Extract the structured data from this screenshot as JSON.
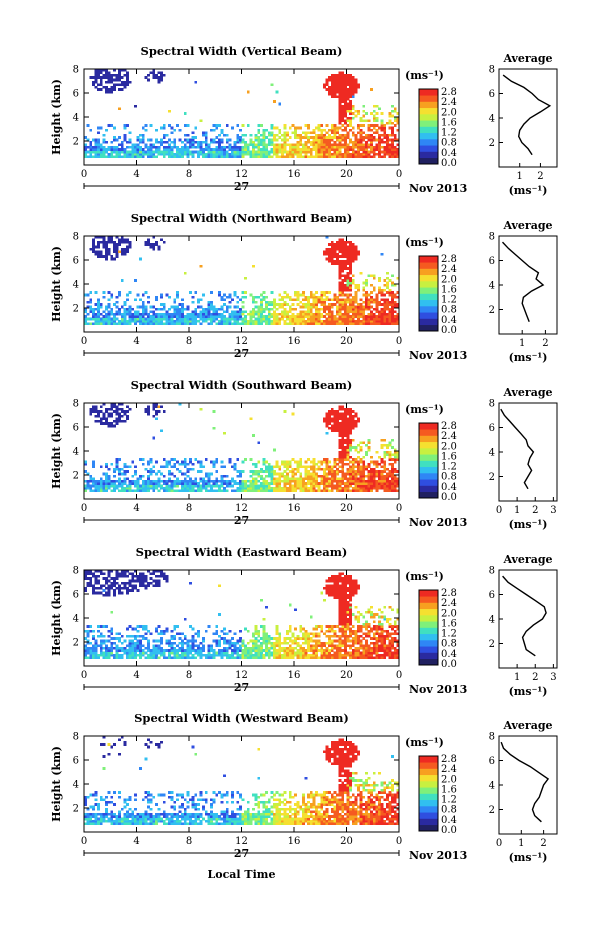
{
  "figure": {
    "xlabel": "Local Time",
    "ylabel": "Height (km)",
    "cbar_unit": "(ms⁻¹)",
    "avg_title": "Average",
    "avg_unit": "(ms⁻¹)",
    "date_day": "27",
    "date_month": "Nov 2013",
    "x_ticks": [
      "0",
      "4",
      "8",
      "12",
      "16",
      "20",
      "0"
    ],
    "y_ticks": [
      "2",
      "4",
      "6",
      "8"
    ],
    "colorbar_ticks": [
      "0.0",
      "0.4",
      "0.8",
      "1.2",
      "1.6",
      "2.0",
      "2.4",
      "2.8"
    ],
    "colormap": [
      "#202060",
      "#2a2aa0",
      "#2f4ee0",
      "#2f86f5",
      "#31bff0",
      "#40e0c0",
      "#7ff07a",
      "#c8f040",
      "#f5e030",
      "#f7a020",
      "#f55a20",
      "#ee2a22"
    ]
  },
  "chart_data": [
    {
      "type": "heatmap",
      "title": "Spectral Width (Vertical Beam)",
      "x_range": [
        0,
        24
      ],
      "y_range": [
        0,
        8
      ],
      "color_range": [
        0,
        2.8
      ],
      "avg_profile": {
        "title": "Average",
        "xticks": [
          "1",
          "2"
        ],
        "xlim": [
          0,
          2.8
        ],
        "ylim": [
          0,
          8
        ],
        "height": [
          1,
          1.5,
          2,
          2.5,
          3,
          3.5,
          4,
          4.5,
          5,
          5.5,
          6,
          6.5,
          7,
          7.5
        ],
        "value": [
          1.6,
          1.4,
          1.1,
          0.95,
          1.0,
          1.2,
          1.5,
          2.0,
          2.45,
          1.9,
          1.6,
          1.2,
          0.6,
          0.2
        ]
      }
    },
    {
      "type": "heatmap",
      "title": "Spectral Width (Northward Beam)",
      "x_range": [
        0,
        24
      ],
      "y_range": [
        0,
        8
      ],
      "color_range": [
        0,
        2.8
      ],
      "avg_profile": {
        "title": "Average",
        "xticks": [
          "1",
          "2"
        ],
        "xlim": [
          0,
          2.5
        ],
        "ylim": [
          0,
          8
        ],
        "height": [
          1,
          1.5,
          2,
          2.5,
          3,
          3.5,
          4,
          4.5,
          5,
          5.5,
          6,
          6.5,
          7,
          7.5
        ],
        "value": [
          1.3,
          1.2,
          1.1,
          1.0,
          1.05,
          1.4,
          1.9,
          1.6,
          1.7,
          1.3,
          1.0,
          0.7,
          0.4,
          0.15
        ]
      }
    },
    {
      "type": "heatmap",
      "title": "Spectral Width (Southward Beam)",
      "x_range": [
        0,
        24
      ],
      "y_range": [
        0,
        8
      ],
      "color_range": [
        0,
        2.8
      ],
      "avg_profile": {
        "title": "Average",
        "xticks": [
          "0",
          "1",
          "2",
          "3"
        ],
        "xlim": [
          0,
          3.2
        ],
        "ylim": [
          0,
          8
        ],
        "height": [
          1,
          1.5,
          2,
          2.5,
          3,
          3.5,
          4,
          4.5,
          5,
          5.5,
          6,
          6.5,
          7,
          7.5
        ],
        "value": [
          1.6,
          1.4,
          1.6,
          1.8,
          1.6,
          1.7,
          1.9,
          1.6,
          1.5,
          1.2,
          0.9,
          0.6,
          0.3,
          0.1
        ]
      }
    },
    {
      "type": "heatmap",
      "title": "Spectral Width (Eastward Beam)",
      "x_range": [
        0,
        24
      ],
      "y_range": [
        0,
        8
      ],
      "color_range": [
        0,
        2.8
      ],
      "avg_profile": {
        "title": "Average",
        "xticks": [
          "1",
          "2",
          "3"
        ],
        "xlim": [
          0,
          3.2
        ],
        "ylim": [
          0,
          8
        ],
        "height": [
          1,
          1.5,
          2,
          2.5,
          3,
          3.5,
          4,
          4.5,
          5,
          5.5,
          6,
          6.5,
          7,
          7.5
        ],
        "value": [
          2.0,
          1.5,
          1.4,
          1.3,
          1.5,
          1.9,
          2.4,
          2.6,
          2.5,
          2.0,
          1.5,
          1.0,
          0.5,
          0.2
        ]
      }
    },
    {
      "type": "heatmap",
      "title": "Spectral Width (Westward Beam)",
      "x_range": [
        0,
        24
      ],
      "y_range": [
        0,
        8
      ],
      "color_range": [
        0,
        2.8
      ],
      "avg_profile": {
        "title": "Average",
        "xticks": [
          "0",
          "1",
          "2"
        ],
        "xlim": [
          0,
          2.6
        ],
        "ylim": [
          0,
          8
        ],
        "height": [
          1,
          1.5,
          2,
          2.5,
          3,
          3.5,
          4,
          4.5,
          5,
          5.5,
          6,
          6.5,
          7,
          7.5
        ],
        "value": [
          1.9,
          1.6,
          1.5,
          1.6,
          1.8,
          1.9,
          2.0,
          2.2,
          1.8,
          1.4,
          0.9,
          0.5,
          0.2,
          0.1
        ]
      }
    }
  ]
}
